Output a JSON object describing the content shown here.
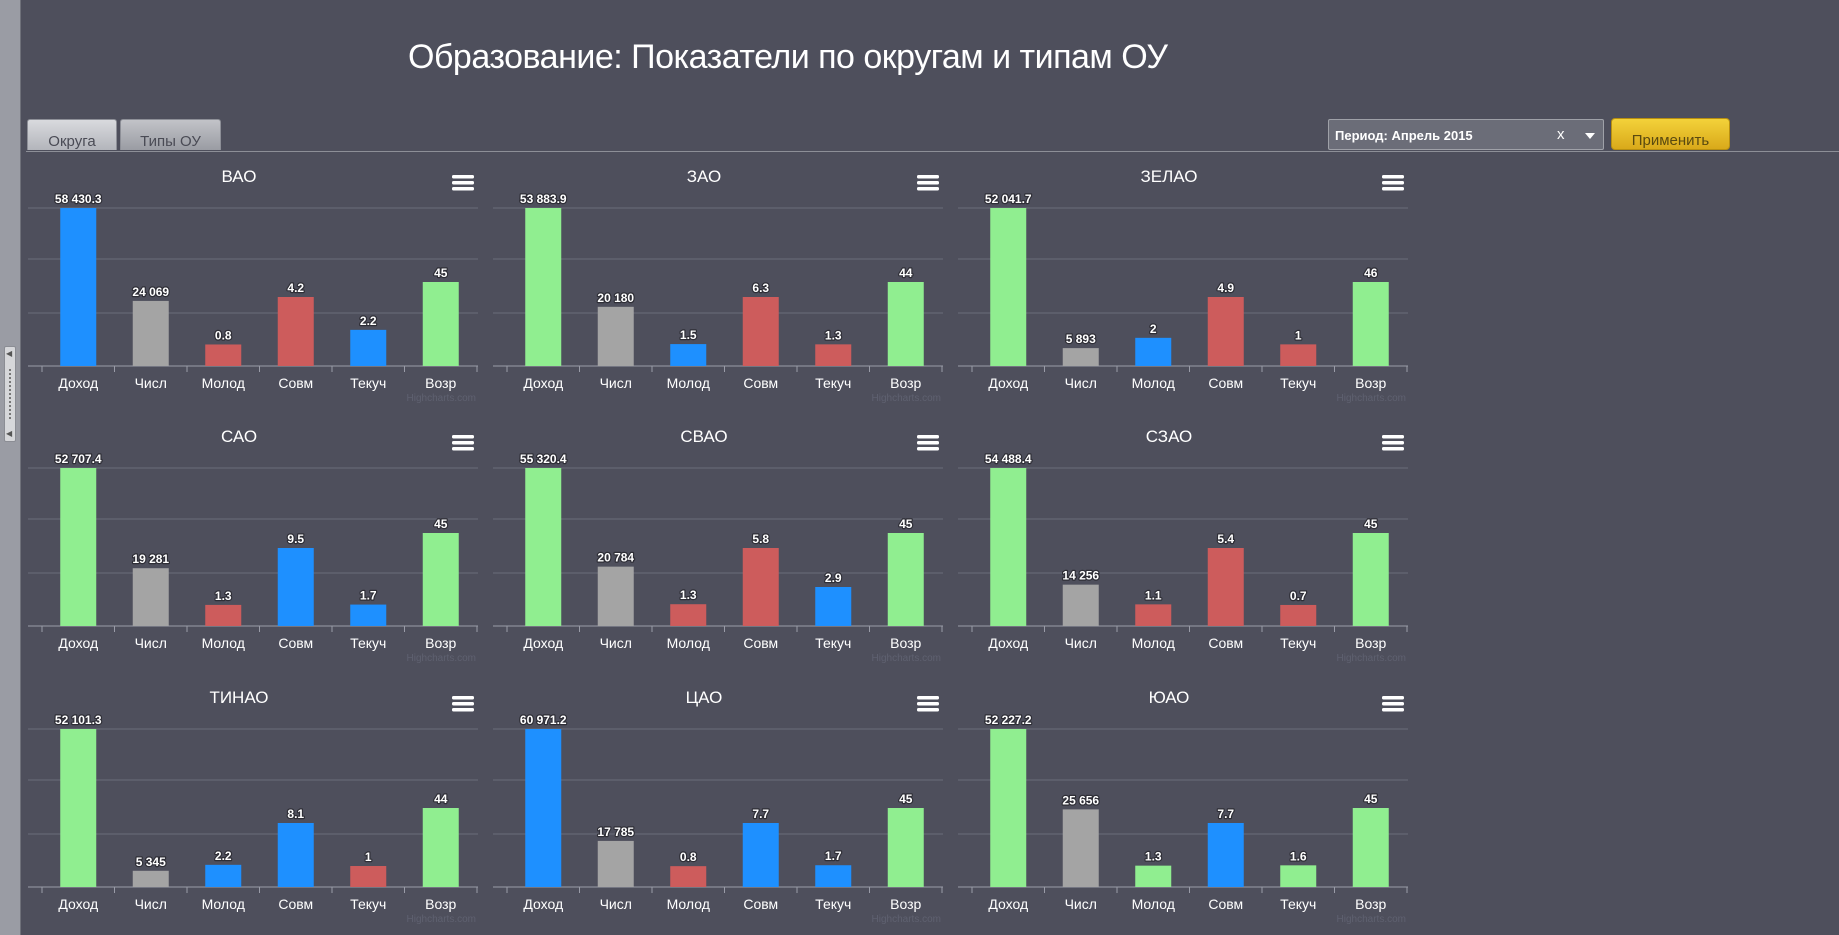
{
  "header": {
    "title": "Образование: Показатели по округам и типам ОУ"
  },
  "tabs": [
    {
      "label": "Округа",
      "active": true
    },
    {
      "label": "Типы ОУ",
      "active": false
    }
  ],
  "filter": {
    "period_label": "Период: Апрель 2015",
    "clear_symbol": "x"
  },
  "actions": {
    "apply_label": "Применить"
  },
  "colors": {
    "green": "#90ee90",
    "gray": "#a4a4a4",
    "blue": "#1e90ff",
    "red": "#cd5c5c",
    "background": "#4e4f5c",
    "apply": "#f0c930"
  },
  "chart_data": [
    {
      "type": "bar",
      "title": "ВАО",
      "categories": [
        "Доход",
        "Числ",
        "Молод",
        "Совм",
        "Текуч",
        "Возр"
      ],
      "values": [
        58430.3,
        24069,
        0.8,
        4.2,
        2.2,
        45
      ],
      "value_labels": [
        "58 430.3",
        "24 069",
        "0.8",
        "4.2",
        "2.2",
        "45"
      ],
      "colors": [
        "blue",
        "gray",
        "red",
        "red",
        "blue",
        "green"
      ],
      "credit": "Highcharts.com"
    },
    {
      "type": "bar",
      "title": "ЗАО",
      "categories": [
        "Доход",
        "Числ",
        "Молод",
        "Совм",
        "Текуч",
        "Возр"
      ],
      "values": [
        53883.9,
        20180,
        1.5,
        6.3,
        1.3,
        44
      ],
      "value_labels": [
        "53 883.9",
        "20 180",
        "1.5",
        "6.3",
        "1.3",
        "44"
      ],
      "colors": [
        "green",
        "gray",
        "blue",
        "red",
        "red",
        "green"
      ],
      "credit": "Highcharts.com"
    },
    {
      "type": "bar",
      "title": "ЗЕЛАО",
      "categories": [
        "Доход",
        "Числ",
        "Молод",
        "Совм",
        "Текуч",
        "Возр"
      ],
      "values": [
        52041.7,
        5893,
        2,
        4.9,
        1,
        46
      ],
      "value_labels": [
        "52 041.7",
        "5 893",
        "2",
        "4.9",
        "1",
        "46"
      ],
      "colors": [
        "green",
        "gray",
        "blue",
        "red",
        "red",
        "green"
      ],
      "credit": "Highcharts.com"
    },
    {
      "type": "bar",
      "title": "САО",
      "categories": [
        "Доход",
        "Числ",
        "Молод",
        "Совм",
        "Текуч",
        "Возр"
      ],
      "values": [
        52707.4,
        19281,
        1.3,
        9.5,
        1.7,
        45
      ],
      "value_labels": [
        "52 707.4",
        "19 281",
        "1.3",
        "9.5",
        "1.7",
        "45"
      ],
      "colors": [
        "green",
        "gray",
        "red",
        "blue",
        "blue",
        "green"
      ],
      "credit": "Highcharts.com"
    },
    {
      "type": "bar",
      "title": "СВАО",
      "categories": [
        "Доход",
        "Числ",
        "Молод",
        "Совм",
        "Текуч",
        "Возр"
      ],
      "values": [
        55320.4,
        20784,
        1.3,
        5.8,
        2.9,
        45
      ],
      "value_labels": [
        "55 320.4",
        "20 784",
        "1.3",
        "5.8",
        "2.9",
        "45"
      ],
      "colors": [
        "green",
        "gray",
        "red",
        "red",
        "blue",
        "green"
      ],
      "credit": "Highcharts.com"
    },
    {
      "type": "bar",
      "title": "СЗАО",
      "categories": [
        "Доход",
        "Числ",
        "Молод",
        "Совм",
        "Текуч",
        "Возр"
      ],
      "values": [
        54488.4,
        14256,
        1.1,
        5.4,
        0.7,
        45
      ],
      "value_labels": [
        "54 488.4",
        "14 256",
        "1.1",
        "5.4",
        "0.7",
        "45"
      ],
      "colors": [
        "green",
        "gray",
        "red",
        "red",
        "red",
        "green"
      ],
      "credit": "Highcharts.com"
    },
    {
      "type": "bar",
      "title": "ТИНАО",
      "categories": [
        "Доход",
        "Числ",
        "Молод",
        "Совм",
        "Текуч",
        "Возр"
      ],
      "values": [
        52101.3,
        5345,
        2.2,
        8.1,
        1,
        44
      ],
      "value_labels": [
        "52 101.3",
        "5 345",
        "2.2",
        "8.1",
        "1",
        "44"
      ],
      "colors": [
        "green",
        "gray",
        "blue",
        "blue",
        "red",
        "green"
      ],
      "credit": "Highcharts.com"
    },
    {
      "type": "bar",
      "title": "ЦАО",
      "categories": [
        "Доход",
        "Числ",
        "Молод",
        "Совм",
        "Текуч",
        "Возр"
      ],
      "values": [
        60971.2,
        17785,
        0.8,
        7.7,
        1.7,
        45
      ],
      "value_labels": [
        "60 971.2",
        "17 785",
        "0.8",
        "7.7",
        "1.7",
        "45"
      ],
      "colors": [
        "blue",
        "gray",
        "red",
        "blue",
        "blue",
        "green"
      ],
      "credit": "Highcharts.com"
    },
    {
      "type": "bar",
      "title": "ЮАО",
      "categories": [
        "Доход",
        "Числ",
        "Молод",
        "Совм",
        "Текуч",
        "Возр"
      ],
      "values": [
        52227.2,
        25656,
        1.3,
        7.7,
        1.6,
        45
      ],
      "value_labels": [
        "52 227.2",
        "25 656",
        "1.3",
        "7.7",
        "1.6",
        "45"
      ],
      "colors": [
        "green",
        "gray",
        "green",
        "blue",
        "green",
        "green"
      ],
      "credit": "Highcharts.com"
    }
  ]
}
